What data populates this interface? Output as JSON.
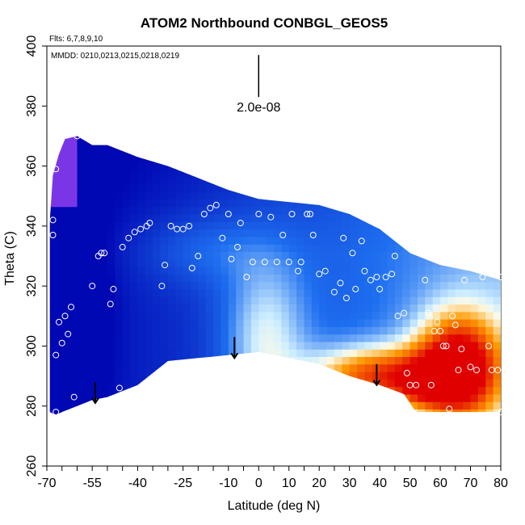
{
  "chart_data": {
    "type": "heatmap",
    "title": "ATOM2 Northbound CONBGL_GEOS5",
    "notes": {
      "flights": "Flts: 6,7,8,9,10",
      "dates": "MMDD: 0210,0213,0215,0218,0219"
    },
    "xlabel": "Latitude (deg N)",
    "ylabel": "Theta (C)",
    "xlim": [
      -70,
      80
    ],
    "ylim": [
      260,
      400
    ],
    "x_ticks": [
      -70,
      -55,
      -40,
      -25,
      -10,
      0,
      10,
      20,
      30,
      40,
      50,
      60,
      70,
      80
    ],
    "x_minor_step": 5,
    "y_ticks": [
      260,
      280,
      300,
      320,
      340,
      360,
      380,
      400
    ],
    "scale_bar": {
      "label": "2.0e-08",
      "x": 0,
      "y_range": [
        383,
        397
      ]
    },
    "colors": {
      "low": "#0008b4",
      "mid_blue": "#1e6ff0",
      "light": "#cfefff",
      "pale": "#fffbe6",
      "orange": "#ff9a00",
      "red": "#e00000",
      "purple": "#7a36e6"
    },
    "field_top_boundary": [
      [
        -69,
        342
      ],
      [
        -68,
        357
      ],
      [
        -66,
        364
      ],
      [
        -64,
        369
      ],
      [
        -60,
        370
      ],
      [
        -55,
        367
      ],
      [
        -50,
        367
      ],
      [
        -45,
        365
      ],
      [
        -40,
        363
      ],
      [
        -30,
        360
      ],
      [
        -20,
        356
      ],
      [
        -10,
        352
      ],
      [
        0,
        349
      ],
      [
        10,
        348
      ],
      [
        20,
        347
      ],
      [
        30,
        344
      ],
      [
        40,
        339
      ],
      [
        50,
        331
      ],
      [
        60,
        327
      ],
      [
        70,
        325
      ],
      [
        80,
        322
      ]
    ],
    "field_bottom_boundary": [
      [
        80,
        278
      ],
      [
        75,
        278
      ],
      [
        60,
        278
      ],
      [
        52,
        278
      ],
      [
        48,
        284
      ],
      [
        40,
        287
      ],
      [
        30,
        290
      ],
      [
        20,
        294
      ],
      [
        10,
        296
      ],
      [
        0,
        298
      ],
      [
        -10,
        297
      ],
      [
        -20,
        296
      ],
      [
        -30,
        295
      ],
      [
        -40,
        287
      ],
      [
        -45,
        285
      ],
      [
        -50,
        283
      ],
      [
        -55,
        282
      ],
      [
        -60,
        280
      ],
      [
        -65,
        278
      ],
      [
        -67,
        277
      ],
      [
        -69,
        278
      ]
    ],
    "arrows": [
      {
        "x": -54,
        "y_from": 288,
        "y_to": 281
      },
      {
        "x": -8,
        "y_from": 303,
        "y_to": 296
      },
      {
        "x": 39,
        "y_from": 294,
        "y_to": 287
      }
    ],
    "sample_points": [
      [
        -68,
        337
      ],
      [
        -68,
        342
      ],
      [
        -67,
        359
      ],
      [
        -66,
        308
      ],
      [
        -65,
        301
      ],
      [
        -64,
        310
      ],
      [
        -63,
        304
      ],
      [
        -62,
        313
      ],
      [
        -61,
        283
      ],
      [
        -67,
        297
      ],
      [
        -67,
        278
      ],
      [
        -60,
        370
      ],
      [
        -58,
        370
      ],
      [
        -55,
        320
      ],
      [
        -53,
        330
      ],
      [
        -52,
        331
      ],
      [
        -51,
        331
      ],
      [
        -49,
        314
      ],
      [
        -48,
        319
      ],
      [
        -46,
        286
      ],
      [
        -45,
        333
      ],
      [
        -43,
        336
      ],
      [
        -41,
        338
      ],
      [
        -39,
        339
      ],
      [
        -37,
        340
      ],
      [
        -36,
        341
      ],
      [
        -32,
        320
      ],
      [
        -31,
        327
      ],
      [
        -29,
        340
      ],
      [
        -27,
        339
      ],
      [
        -25,
        339
      ],
      [
        -23,
        340
      ],
      [
        -22,
        326
      ],
      [
        -20,
        330
      ],
      [
        -18,
        344
      ],
      [
        -16,
        346
      ],
      [
        -14,
        347
      ],
      [
        -12,
        336
      ],
      [
        -10,
        344
      ],
      [
        -9,
        329
      ],
      [
        -7,
        333
      ],
      [
        -6,
        341
      ],
      [
        -4,
        323
      ],
      [
        -2,
        328
      ],
      [
        0,
        344
      ],
      [
        2,
        328
      ],
      [
        4,
        343
      ],
      [
        6,
        328
      ],
      [
        8,
        337
      ],
      [
        10,
        328
      ],
      [
        11,
        344
      ],
      [
        13,
        325
      ],
      [
        14,
        328
      ],
      [
        16,
        344
      ],
      [
        17,
        344
      ],
      [
        18,
        337
      ],
      [
        20,
        324
      ],
      [
        22,
        325
      ],
      [
        24,
        347
      ],
      [
        25,
        318
      ],
      [
        27,
        321
      ],
      [
        28,
        336
      ],
      [
        29,
        316
      ],
      [
        31,
        331
      ],
      [
        32,
        319
      ],
      [
        34,
        335
      ],
      [
        35,
        325
      ],
      [
        37,
        322
      ],
      [
        39,
        323
      ],
      [
        40,
        319
      ],
      [
        42,
        323
      ],
      [
        44,
        324
      ],
      [
        45,
        330
      ],
      [
        46,
        310
      ],
      [
        48,
        311
      ],
      [
        49,
        291
      ],
      [
        50,
        287
      ],
      [
        52,
        287
      ],
      [
        53,
        336
      ],
      [
        55,
        322
      ],
      [
        56,
        311
      ],
      [
        57,
        287
      ],
      [
        58,
        305
      ],
      [
        59,
        308
      ],
      [
        60,
        305
      ],
      [
        61,
        300
      ],
      [
        62,
        300
      ],
      [
        63,
        279
      ],
      [
        64,
        310
      ],
      [
        65,
        307
      ],
      [
        66,
        292
      ],
      [
        67,
        299
      ],
      [
        68,
        322
      ],
      [
        70,
        293
      ],
      [
        72,
        292
      ],
      [
        74,
        323
      ],
      [
        76,
        300
      ],
      [
        77,
        292
      ],
      [
        79,
        292
      ],
      [
        80,
        278
      ],
      [
        80,
        323
      ]
    ]
  }
}
